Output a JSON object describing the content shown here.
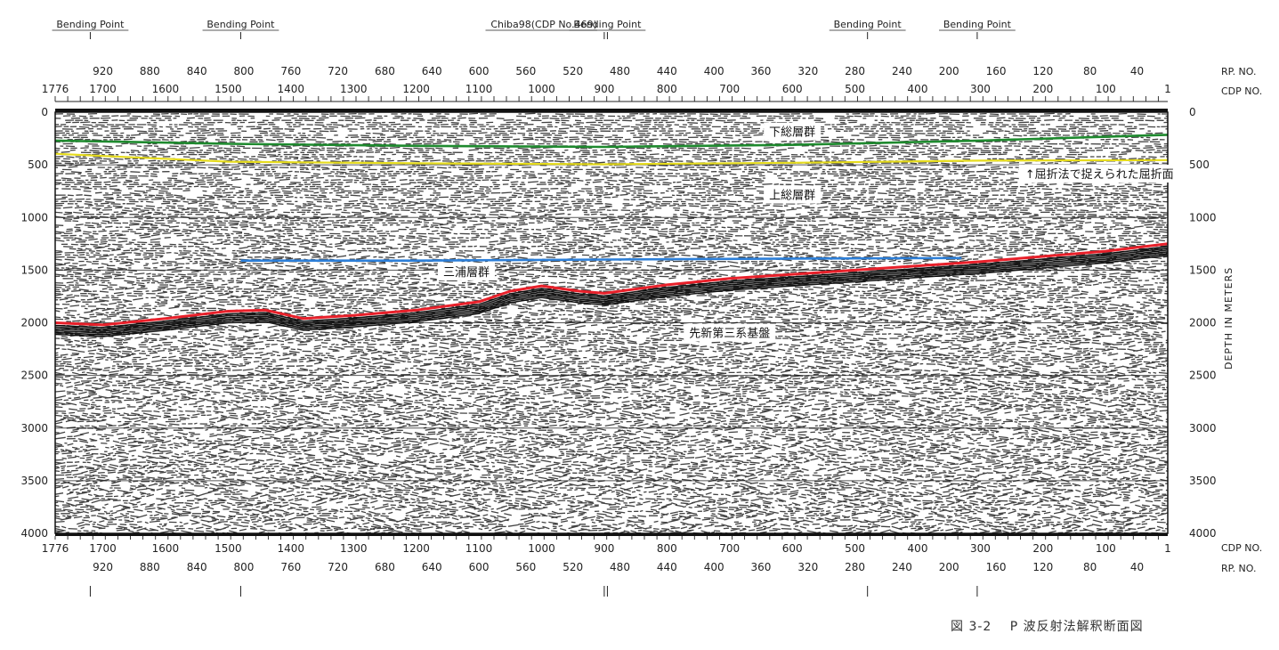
{
  "chart_data": {
    "type": "seismic-section",
    "caption": "図 3-2　 P 波反射法解釈断面図",
    "depth_axis": {
      "label": "DEPTH IN METERS",
      "min": 0,
      "max": 4000,
      "ticks": [
        0,
        500,
        1000,
        1500,
        2000,
        2500,
        3000,
        3500,
        4000
      ]
    },
    "cdp_axis": {
      "label": "CDP NO.",
      "start": 1776,
      "end": 1,
      "ticks": [
        1776,
        1700,
        1600,
        1500,
        1400,
        1300,
        1200,
        1100,
        1000,
        900,
        800,
        700,
        600,
        500,
        400,
        300,
        200,
        100,
        1
      ]
    },
    "rp_axis": {
      "label": "RP. NO.",
      "ticks": [
        920,
        880,
        840,
        800,
        760,
        720,
        680,
        640,
        600,
        560,
        520,
        480,
        440,
        400,
        360,
        320,
        280,
        240,
        200,
        160,
        120,
        80,
        40
      ]
    },
    "bending_points": [
      {
        "label": "Bending Point",
        "cdp": 1720
      },
      {
        "label": "Bending Point",
        "cdp": 1480
      },
      {
        "label": "Chiba98(CDP No.469)",
        "cdp": 900,
        "marker": true
      },
      {
        "label": "Bending Point",
        "cdp": 895
      },
      {
        "label": "Bending Point",
        "cdp": 480
      },
      {
        "label": "Bending Point",
        "cdp": 305
      }
    ],
    "horizons": [
      {
        "name": "下総層群",
        "color": "#1e8a2e",
        "width": 2.6,
        "points": [
          [
            1776,
            270
          ],
          [
            1500,
            300
          ],
          [
            1200,
            320
          ],
          [
            900,
            330
          ],
          [
            600,
            310
          ],
          [
            300,
            270
          ],
          [
            1,
            215
          ]
        ]
      },
      {
        "name": "refraction",
        "color": "#e6dc1e",
        "width": 2.2,
        "points": [
          [
            1776,
            395
          ],
          [
            1500,
            470
          ],
          [
            1200,
            485
          ],
          [
            900,
            495
          ],
          [
            600,
            480
          ],
          [
            300,
            460
          ],
          [
            1,
            455
          ]
        ]
      },
      {
        "name": "blue",
        "color": "#2d7fd8",
        "width": 2.6,
        "points": [
          [
            1480,
            1410
          ],
          [
            1200,
            1410
          ],
          [
            900,
            1400
          ],
          [
            600,
            1390
          ],
          [
            330,
            1385
          ]
        ]
      },
      {
        "name": "三浦層群",
        "color": "#e8202a",
        "width": 3,
        "points": [
          [
            1776,
            2000
          ],
          [
            1700,
            2020
          ],
          [
            1600,
            1960
          ],
          [
            1500,
            1890
          ],
          [
            1440,
            1880
          ],
          [
            1380,
            1960
          ],
          [
            1300,
            1930
          ],
          [
            1200,
            1880
          ],
          [
            1100,
            1800
          ],
          [
            1050,
            1700
          ],
          [
            1000,
            1650
          ],
          [
            940,
            1700
          ],
          [
            900,
            1720
          ],
          [
            800,
            1640
          ],
          [
            700,
            1580
          ],
          [
            600,
            1540
          ],
          [
            500,
            1500
          ],
          [
            400,
            1460
          ],
          [
            300,
            1420
          ],
          [
            200,
            1370
          ],
          [
            100,
            1320
          ],
          [
            1,
            1250
          ]
        ]
      }
    ],
    "annotations": [
      {
        "text": "下総層群",
        "cdp": 600,
        "depth": 200
      },
      {
        "text": "↑屈折法で捉えられた屈折面",
        "cdp": 110,
        "depth": 600
      },
      {
        "text": "上総層群",
        "cdp": 600,
        "depth": 800
      },
      {
        "text": "三浦層群",
        "cdp": 1120,
        "depth": 1530
      },
      {
        "text": "先新第三系基盤",
        "cdp": 700,
        "depth": 2110
      }
    ]
  }
}
